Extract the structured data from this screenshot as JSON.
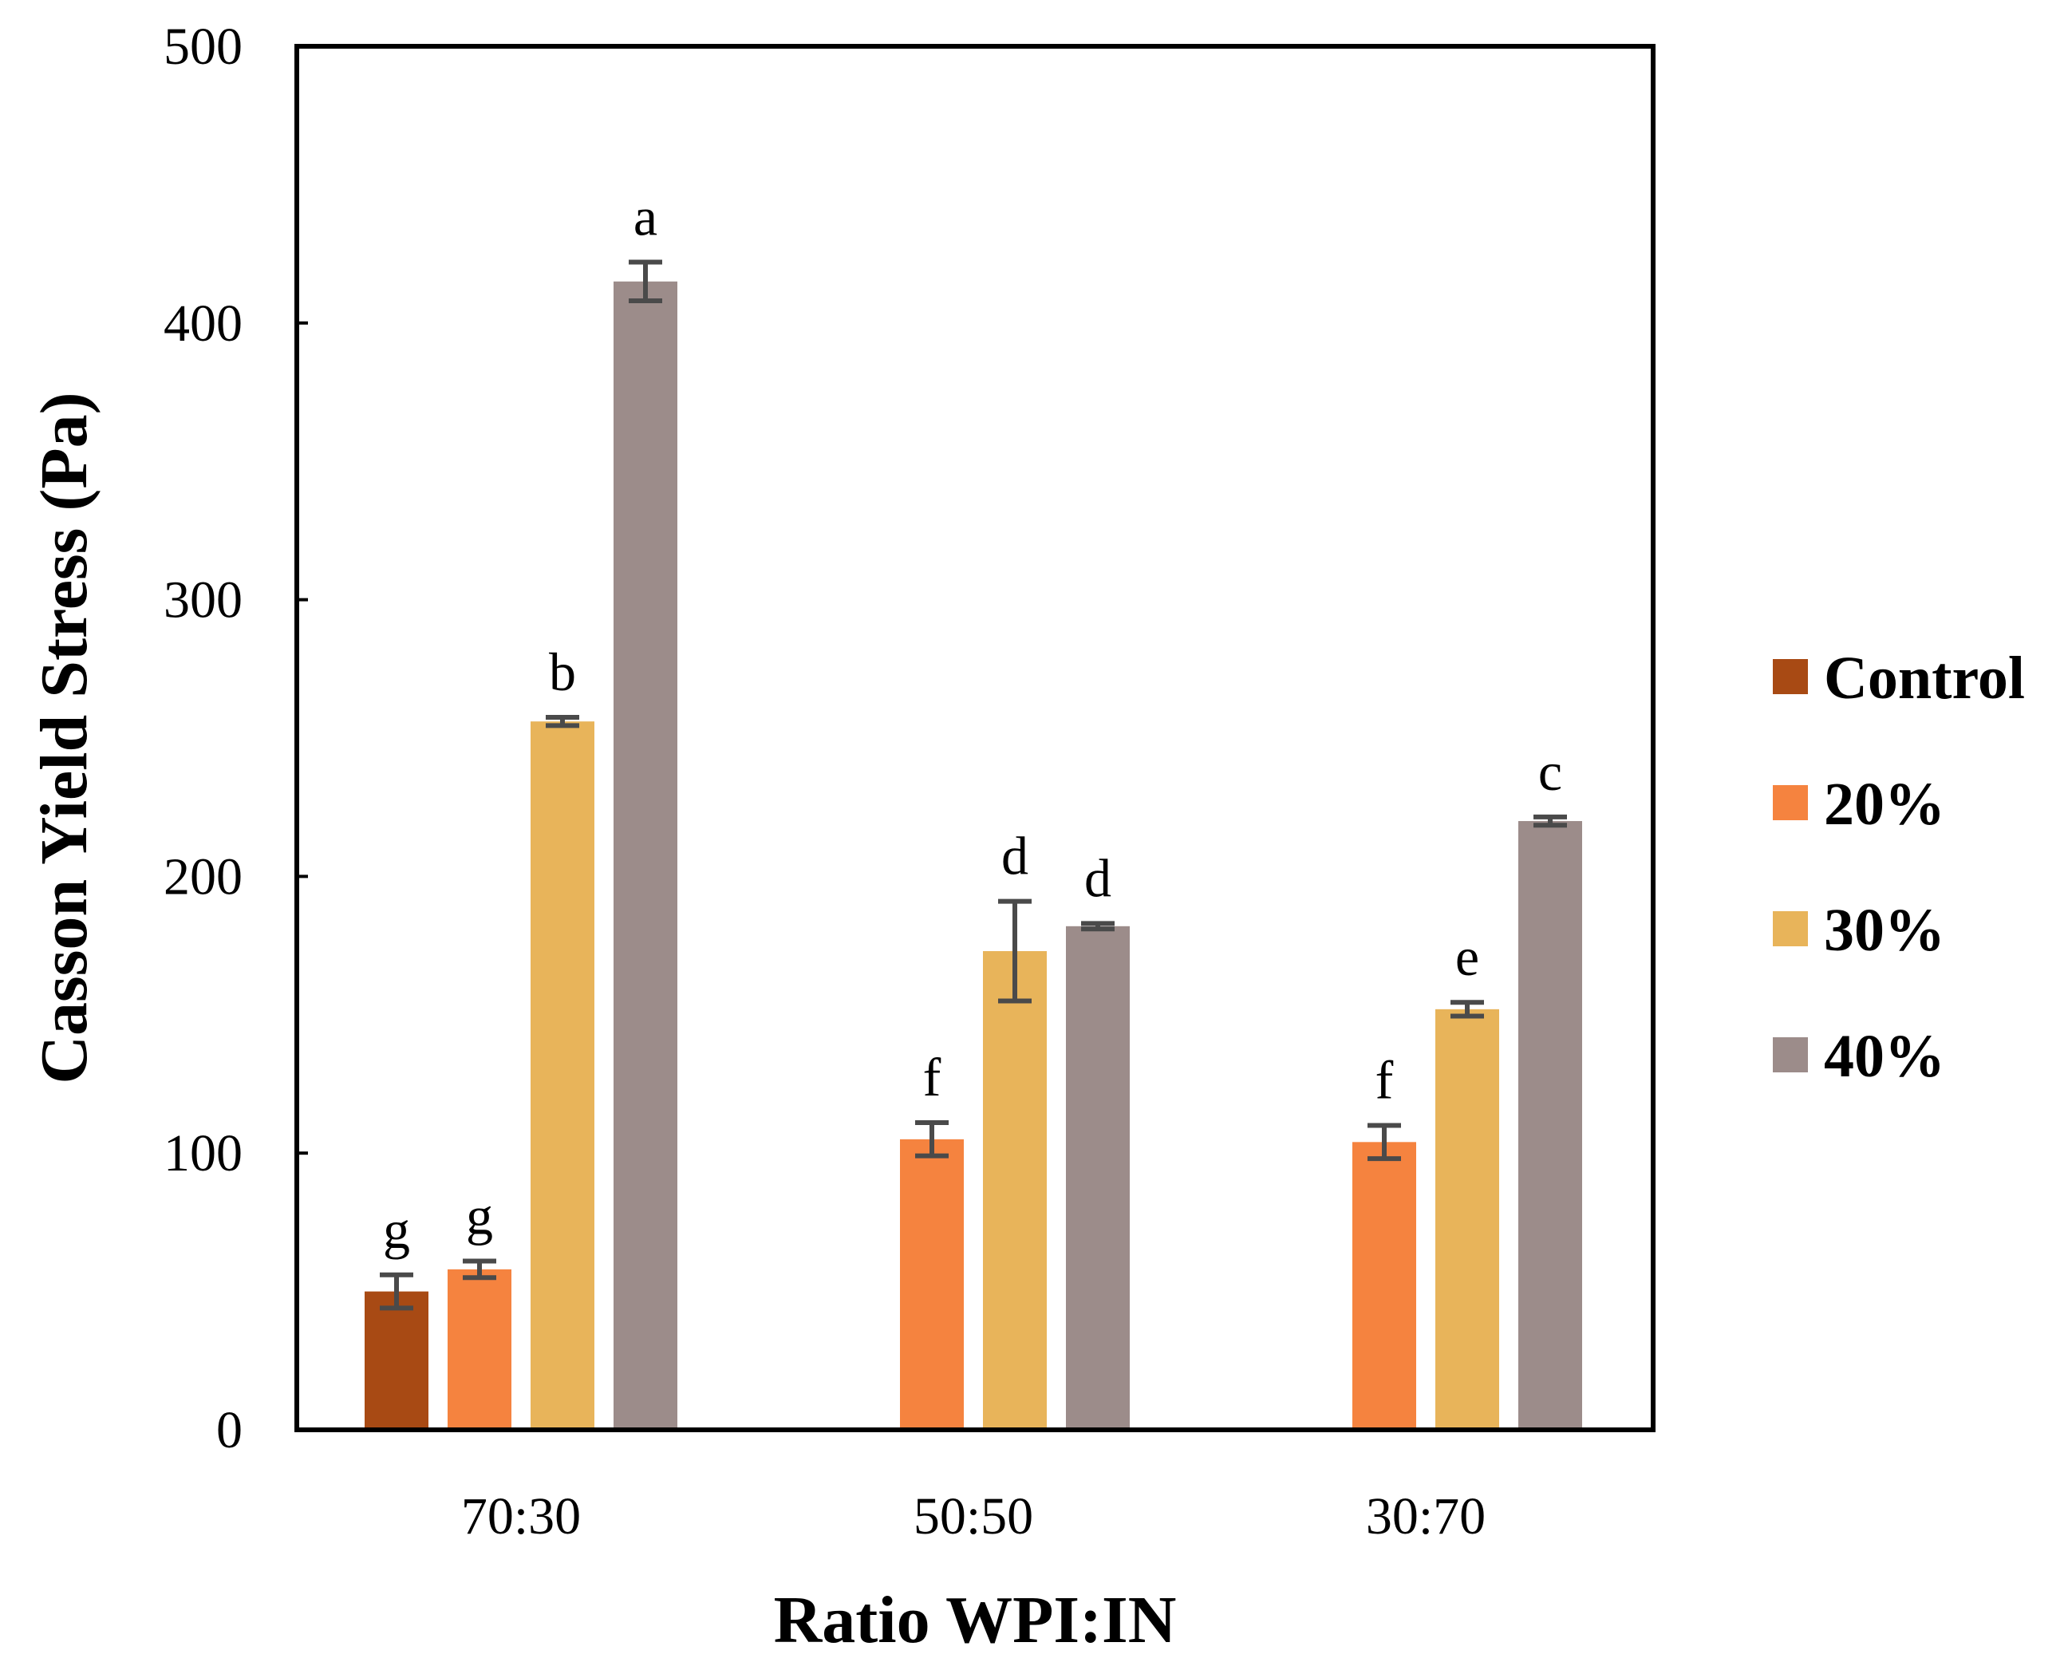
{
  "chart_data": {
    "type": "bar",
    "title": "",
    "xlabel": "Ratio WPI:IN",
    "ylabel": "Casson Yield Stress (Pa)",
    "ylim": [
      0,
      500
    ],
    "yticks": [
      0,
      100,
      200,
      300,
      400,
      500
    ],
    "grid": false,
    "legend_position": "right",
    "categories": [
      "70:30",
      "50:50",
      "30:70"
    ],
    "series": [
      {
        "name": "Control",
        "color": "#a84a14",
        "values": [
          50,
          null,
          null
        ],
        "errors": [
          6,
          null,
          null
        ],
        "labels": [
          "g",
          null,
          null
        ]
      },
      {
        "name": "20%",
        "color": "#f5833f",
        "values": [
          58,
          105,
          104
        ],
        "errors": [
          3,
          6,
          6
        ],
        "labels": [
          "g",
          "f",
          "f"
        ]
      },
      {
        "name": "30%",
        "color": "#e8b45a",
        "values": [
          256,
          173,
          152
        ],
        "errors": [
          1.5,
          18,
          2.5
        ],
        "labels": [
          "b",
          "d",
          "e"
        ]
      },
      {
        "name": "40%",
        "color": "#9c8c8a",
        "values": [
          415,
          182,
          220
        ],
        "errors": [
          7,
          1,
          1.5
        ],
        "labels": [
          "a",
          "d",
          "c"
        ]
      }
    ]
  }
}
